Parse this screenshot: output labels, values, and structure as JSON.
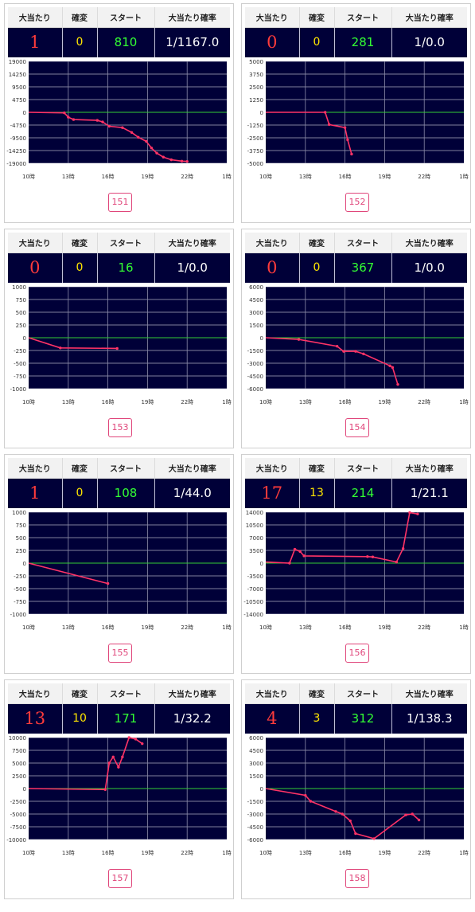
{
  "columns": {
    "hits": "大当たり",
    "kakuhen": "確変",
    "start": "スタート",
    "rate": "大当たり確率"
  },
  "x_labels": [
    "10時",
    "13時",
    "16時",
    "19時",
    "22時",
    "1時"
  ],
  "colors": {
    "plot_bg": "#000038",
    "grid": "#ffffff",
    "zero_line": "#33cc33",
    "series": "#ff3366",
    "hits": "#ff3b3b",
    "kakuhen": "#ffe600",
    "start": "#33ff33"
  },
  "machines": [
    {
      "id": "151",
      "hits": "1",
      "kakuhen": "0",
      "start": "810",
      "rate": "1/1167.0",
      "chart_data": {
        "type": "line",
        "x_labels": [
          "10時",
          "13時",
          "16時",
          "19時",
          "22時",
          "1時"
        ],
        "x_range": [
          10,
          25
        ],
        "y_ticks": [
          19000,
          14250,
          9500,
          4750,
          0,
          -4750,
          -9500,
          -14250,
          -19000
        ],
        "y_labels": [
          "19000",
          "14250",
          "9500",
          "4750",
          "0",
          "-4750",
          "-9500",
          "-14250",
          "-19000"
        ],
        "ylim": [
          -19000,
          19000
        ],
        "points": [
          [
            10,
            0
          ],
          [
            12.7,
            -200
          ],
          [
            13.0,
            -1800
          ],
          [
            13.4,
            -2700
          ],
          [
            15.2,
            -3000
          ],
          [
            15.6,
            -3600
          ],
          [
            16.1,
            -5200
          ],
          [
            17.1,
            -5700
          ],
          [
            17.8,
            -7500
          ],
          [
            18.3,
            -9300
          ],
          [
            18.9,
            -10800
          ],
          [
            19.3,
            -13300
          ],
          [
            19.7,
            -15200
          ],
          [
            20.2,
            -16700
          ],
          [
            20.8,
            -17700
          ],
          [
            21.6,
            -18200
          ],
          [
            22.0,
            -18300
          ]
        ]
      }
    },
    {
      "id": "152",
      "hits": "0",
      "kakuhen": "0",
      "start": "281",
      "rate": "1/0.0",
      "chart_data": {
        "type": "line",
        "x_labels": [
          "10時",
          "13時",
          "16時",
          "19時",
          "22時",
          "1時"
        ],
        "x_range": [
          10,
          25
        ],
        "y_ticks": [
          5000,
          3750,
          2500,
          1250,
          0,
          -1250,
          -2500,
          -3750,
          -5000
        ],
        "y_labels": [
          "5000",
          "3750",
          "2500",
          "1250",
          "0",
          "-1250",
          "-2500",
          "-3750",
          "-5000"
        ],
        "ylim": [
          -5000,
          5000
        ],
        "points": [
          [
            10,
            0
          ],
          [
            14.5,
            0
          ],
          [
            14.8,
            -1200
          ],
          [
            16.0,
            -1500
          ],
          [
            16.2,
            -2700
          ],
          [
            16.5,
            -4100
          ]
        ]
      }
    },
    {
      "id": "153",
      "hits": "0",
      "kakuhen": "0",
      "start": "16",
      "rate": "1/0.0",
      "chart_data": {
        "type": "line",
        "x_labels": [
          "10時",
          "13時",
          "16時",
          "19時",
          "22時",
          "1時"
        ],
        "x_range": [
          10,
          25
        ],
        "y_ticks": [
          1000,
          750,
          500,
          250,
          0,
          -250,
          -500,
          -750,
          -1000
        ],
        "y_labels": [
          "1000",
          "750",
          "500",
          "250",
          "0",
          "-250",
          "-500",
          "-750",
          "-1000"
        ],
        "ylim": [
          -1000,
          1000
        ],
        "points": [
          [
            10,
            0
          ],
          [
            12.4,
            -200
          ],
          [
            16.7,
            -210
          ]
        ]
      }
    },
    {
      "id": "154",
      "hits": "0",
      "kakuhen": "0",
      "start": "367",
      "rate": "1/0.0",
      "chart_data": {
        "type": "line",
        "x_labels": [
          "10時",
          "13時",
          "16時",
          "19時",
          "22時",
          "1時"
        ],
        "x_range": [
          10,
          25
        ],
        "y_ticks": [
          6000,
          4500,
          3000,
          1500,
          0,
          -1500,
          -3000,
          -4500,
          -6000
        ],
        "y_labels": [
          "6000",
          "4500",
          "3000",
          "1500",
          "0",
          "-1500",
          "-3000",
          "-4500",
          "-6000"
        ],
        "ylim": [
          -6000,
          6000
        ],
        "points": [
          [
            10,
            0
          ],
          [
            12.5,
            -200
          ],
          [
            15.4,
            -1000
          ],
          [
            15.9,
            -1600
          ],
          [
            16.8,
            -1600
          ],
          [
            17.4,
            -1900
          ],
          [
            19.4,
            -3300
          ],
          [
            19.6,
            -3500
          ],
          [
            20.0,
            -5500
          ]
        ]
      }
    },
    {
      "id": "155",
      "hits": "1",
      "kakuhen": "0",
      "start": "108",
      "rate": "1/44.0",
      "chart_data": {
        "type": "line",
        "x_labels": [
          "10時",
          "13時",
          "16時",
          "19時",
          "22時",
          "1時"
        ],
        "x_range": [
          10,
          25
        ],
        "y_ticks": [
          1000,
          750,
          500,
          250,
          0,
          -250,
          -500,
          -750,
          -1000
        ],
        "y_labels": [
          "1000",
          "750",
          "500",
          "250",
          "0",
          "-250",
          "-500",
          "-750",
          "-1000"
        ],
        "ylim": [
          -1000,
          1000
        ],
        "points": [
          [
            10,
            0
          ],
          [
            16.0,
            -400
          ]
        ]
      }
    },
    {
      "id": "156",
      "hits": "17",
      "kakuhen": "13",
      "start": "214",
      "rate": "1/21.1",
      "chart_data": {
        "type": "line",
        "x_labels": [
          "10時",
          "13時",
          "16時",
          "19時",
          "22時",
          "1時"
        ],
        "x_range": [
          10,
          25
        ],
        "y_ticks": [
          14000,
          10500,
          7000,
          3500,
          0,
          -3500,
          -7000,
          -10500,
          -14000
        ],
        "y_labels": [
          "14000",
          "10500",
          "7000",
          "3500",
          "0",
          "-3500",
          "-7000",
          "-10500",
          "-14000"
        ],
        "ylim": [
          -14000,
          14000
        ],
        "points": [
          [
            10,
            300
          ],
          [
            11.8,
            0
          ],
          [
            12.2,
            3800
          ],
          [
            12.6,
            3200
          ],
          [
            12.9,
            2000
          ],
          [
            17.7,
            1800
          ],
          [
            18.1,
            1700
          ],
          [
            19.9,
            300
          ],
          [
            20.4,
            4000
          ],
          [
            20.9,
            13900
          ],
          [
            21.5,
            13500
          ]
        ]
      }
    },
    {
      "id": "157",
      "hits": "13",
      "kakuhen": "10",
      "start": "171",
      "rate": "1/32.2",
      "chart_data": {
        "type": "line",
        "x_labels": [
          "10時",
          "13時",
          "16時",
          "19時",
          "22時",
          "1時"
        ],
        "x_range": [
          10,
          25
        ],
        "y_ticks": [
          10000,
          7500,
          5000,
          2500,
          0,
          -2500,
          -5000,
          -7500,
          -10000
        ],
        "y_labels": [
          "10000",
          "7500",
          "5000",
          "2500",
          "0",
          "-2500",
          "-5000",
          "-7500",
          "-10000"
        ],
        "ylim": [
          -10000,
          10000
        ],
        "points": [
          [
            10,
            0
          ],
          [
            15.8,
            -200
          ],
          [
            16.1,
            5000
          ],
          [
            16.4,
            6200
          ],
          [
            16.8,
            4200
          ],
          [
            17.1,
            6200
          ],
          [
            17.6,
            10000
          ],
          [
            18.1,
            9700
          ],
          [
            18.6,
            8800
          ]
        ]
      }
    },
    {
      "id": "158",
      "hits": "4",
      "kakuhen": "3",
      "start": "312",
      "rate": "1/138.3",
      "chart_data": {
        "type": "line",
        "x_labels": [
          "10時",
          "13時",
          "16時",
          "19時",
          "22時",
          "1時"
        ],
        "x_range": [
          10,
          25
        ],
        "y_ticks": [
          6000,
          4500,
          3000,
          1500,
          0,
          -1500,
          -3000,
          -4500,
          -6000
        ],
        "y_labels": [
          "6000",
          "4500",
          "3000",
          "1500",
          "0",
          "-1500",
          "-3000",
          "-4500",
          "-6000"
        ],
        "ylim": [
          -6000,
          6000
        ],
        "points": [
          [
            10,
            0
          ],
          [
            13.0,
            -800
          ],
          [
            13.4,
            -1500
          ],
          [
            15.3,
            -2700
          ],
          [
            15.8,
            -3000
          ],
          [
            16.4,
            -3800
          ],
          [
            16.8,
            -5300
          ],
          [
            18.2,
            -5900
          ],
          [
            20.6,
            -3100
          ],
          [
            21.1,
            -3000
          ],
          [
            21.6,
            -3700
          ]
        ]
      }
    }
  ]
}
